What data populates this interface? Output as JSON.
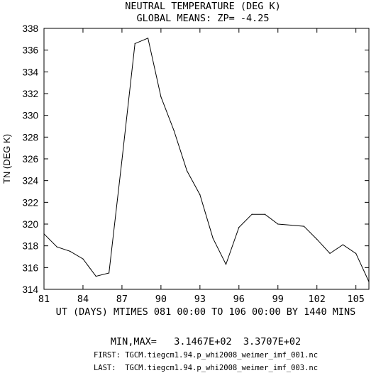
{
  "chart_data": {
    "type": "line",
    "title": "NEUTRAL TEMPERATURE (DEG K)",
    "subtitle": "GLOBAL MEANS: ZP= -4.25",
    "xlabel": "UT (DAYS) MTIMES 081 00:00 TO 106 00:00 BY 1440 MINS",
    "ylabel": "TN (DEG K)",
    "xlim": [
      81,
      106
    ],
    "ylim": [
      314,
      338
    ],
    "xticks": [
      "81",
      "84",
      "87",
      "90",
      "93",
      "96",
      "99",
      "102",
      "105"
    ],
    "yticks": [
      "314",
      "316",
      "318",
      "320",
      "322",
      "324",
      "326",
      "328",
      "330",
      "332",
      "334",
      "336",
      "338"
    ],
    "x": [
      81,
      82,
      83,
      84,
      85,
      86,
      87,
      88,
      89,
      90,
      91,
      92,
      93,
      94,
      95,
      96,
      97,
      98,
      99,
      100,
      101,
      102,
      103,
      104,
      105,
      106
    ],
    "values": [
      319.1,
      317.9,
      317.5,
      316.8,
      315.2,
      315.5,
      325.9,
      336.6,
      337.1,
      331.7,
      328.6,
      324.9,
      322.7,
      318.7,
      316.3,
      319.7,
      320.9,
      320.9,
      320.0,
      319.9,
      319.8,
      318.6,
      317.3,
      318.1,
      317.3,
      314.7
    ],
    "grid": false,
    "legend": "none"
  },
  "footer": {
    "minmax": "MIN,MAX=   3.1467E+02  3.3707E+02",
    "first": "FIRST: TGCM.tiegcm1.94.p_whi2008_weimer_imf_001.nc",
    "last": "LAST:  TGCM.tiegcm1.94.p_whi2008_weimer_imf_003.nc"
  }
}
